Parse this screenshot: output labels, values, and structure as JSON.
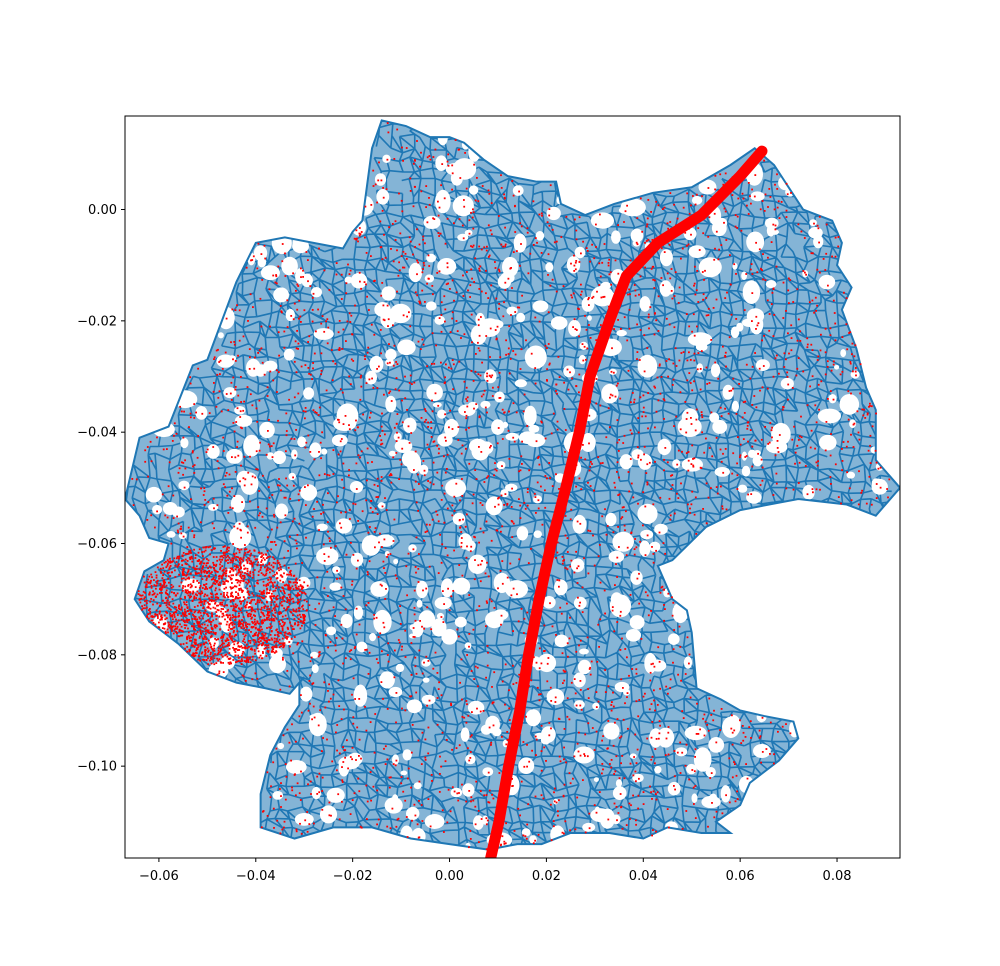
{
  "chart_data": {
    "type": "scatter",
    "title": "",
    "xlabel": "",
    "ylabel": "",
    "xlim": [
      -0.067,
      0.093
    ],
    "ylim": [
      -0.1165,
      0.0168
    ],
    "grid": false,
    "legend": "none",
    "x_ticks": [
      -0.06,
      -0.04,
      -0.02,
      0.0,
      0.02,
      0.04,
      0.06,
      0.08
    ],
    "x_tick_labels": [
      "−0.06",
      "−0.04",
      "−0.02",
      "0.00",
      "0.02",
      "0.04",
      "0.06",
      "0.08"
    ],
    "y_ticks": [
      0.0,
      -0.02,
      -0.04,
      -0.06,
      -0.08,
      -0.1
    ],
    "y_tick_labels": [
      "0.00",
      "−0.02",
      "−0.04",
      "−0.06",
      "−0.08",
      "−0.10"
    ],
    "series": [
      {
        "kind": "network",
        "color": "#1f77b4",
        "outline": [
          [
            -0.067,
            -0.052
          ],
          [
            -0.064,
            -0.041
          ],
          [
            -0.058,
            -0.039
          ],
          [
            -0.053,
            -0.028
          ],
          [
            -0.05,
            -0.027
          ],
          [
            -0.044,
            -0.013
          ],
          [
            -0.04,
            -0.006
          ],
          [
            -0.034,
            -0.005
          ],
          [
            -0.022,
            -0.007
          ],
          [
            -0.02,
            -0.004
          ],
          [
            -0.018,
            -0.002
          ],
          [
            -0.016,
            0.011
          ],
          [
            -0.014,
            0.016
          ],
          [
            -0.009,
            0.015
          ],
          [
            -0.004,
            0.013
          ],
          [
            0.0,
            0.013
          ],
          [
            0.003,
            0.012
          ],
          [
            0.007,
            0.009
          ],
          [
            0.012,
            0.006
          ],
          [
            0.018,
            0.005
          ],
          [
            0.022,
            0.005
          ],
          [
            0.023,
            0.001
          ],
          [
            0.028,
            -0.001
          ],
          [
            0.034,
            0.001
          ],
          [
            0.042,
            0.003
          ],
          [
            0.05,
            0.004
          ],
          [
            0.058,
            0.008
          ],
          [
            0.063,
            0.011
          ],
          [
            0.067,
            0.008
          ],
          [
            0.073,
            0.0
          ],
          [
            0.079,
            -0.002
          ],
          [
            0.081,
            -0.006
          ],
          [
            0.08,
            -0.01
          ],
          [
            0.083,
            -0.014
          ],
          [
            0.081,
            -0.018
          ],
          [
            0.084,
            -0.025
          ],
          [
            0.086,
            -0.032
          ],
          [
            0.088,
            -0.036
          ],
          [
            0.088,
            -0.045
          ],
          [
            0.093,
            -0.05
          ],
          [
            0.088,
            -0.055
          ],
          [
            0.082,
            -0.053
          ],
          [
            0.072,
            -0.052
          ],
          [
            0.06,
            -0.054
          ],
          [
            0.053,
            -0.057
          ],
          [
            0.046,
            -0.063
          ],
          [
            0.043,
            -0.064
          ],
          [
            0.046,
            -0.07
          ],
          [
            0.049,
            -0.072
          ],
          [
            0.05,
            -0.076
          ],
          [
            0.051,
            -0.086
          ],
          [
            0.056,
            -0.088
          ],
          [
            0.06,
            -0.09
          ],
          [
            0.065,
            -0.091
          ],
          [
            0.071,
            -0.092
          ],
          [
            0.072,
            -0.095
          ],
          [
            0.068,
            -0.099
          ],
          [
            0.062,
            -0.103
          ],
          [
            0.06,
            -0.107
          ],
          [
            0.055,
            -0.11
          ],
          [
            0.058,
            -0.112
          ],
          [
            0.052,
            -0.112
          ],
          [
            0.045,
            -0.111
          ],
          [
            0.04,
            -0.113
          ],
          [
            0.033,
            -0.112
          ],
          [
            0.025,
            -0.112
          ],
          [
            0.019,
            -0.114
          ],
          [
            0.014,
            -0.114
          ],
          [
            0.008,
            -0.115
          ],
          [
            0.0,
            -0.114
          ],
          [
            -0.008,
            -0.113
          ],
          [
            -0.016,
            -0.111
          ],
          [
            -0.024,
            -0.111
          ],
          [
            -0.032,
            -0.113
          ],
          [
            -0.039,
            -0.111
          ],
          [
            -0.039,
            -0.105
          ],
          [
            -0.037,
            -0.098
          ],
          [
            -0.034,
            -0.093
          ],
          [
            -0.031,
            -0.089
          ],
          [
            -0.031,
            -0.085
          ],
          [
            -0.03,
            -0.084
          ],
          [
            -0.033,
            -0.087
          ],
          [
            -0.038,
            -0.086
          ],
          [
            -0.044,
            -0.085
          ],
          [
            -0.05,
            -0.083
          ],
          [
            -0.056,
            -0.078
          ],
          [
            -0.062,
            -0.074
          ],
          [
            -0.065,
            -0.07
          ],
          [
            -0.063,
            -0.065
          ],
          [
            -0.059,
            -0.063
          ],
          [
            -0.058,
            -0.06
          ],
          [
            -0.062,
            -0.059
          ],
          [
            -0.064,
            -0.055
          ]
        ]
      },
      {
        "kind": "path",
        "color": "#ff0000",
        "points": [
          [
            0.0085,
            -0.1165
          ],
          [
            0.0102,
            -0.11
          ],
          [
            0.0122,
            -0.1
          ],
          [
            0.0145,
            -0.09
          ],
          [
            0.0163,
            -0.08
          ],
          [
            0.0185,
            -0.07
          ],
          [
            0.021,
            -0.06
          ],
          [
            0.024,
            -0.05
          ],
          [
            0.0268,
            -0.04
          ],
          [
            0.029,
            -0.03
          ],
          [
            0.033,
            -0.02
          ],
          [
            0.0365,
            -0.012
          ],
          [
            0.043,
            -0.006
          ],
          [
            0.052,
            -0.001
          ],
          [
            0.06,
            0.006
          ],
          [
            0.0645,
            0.0105
          ]
        ]
      }
    ]
  }
}
